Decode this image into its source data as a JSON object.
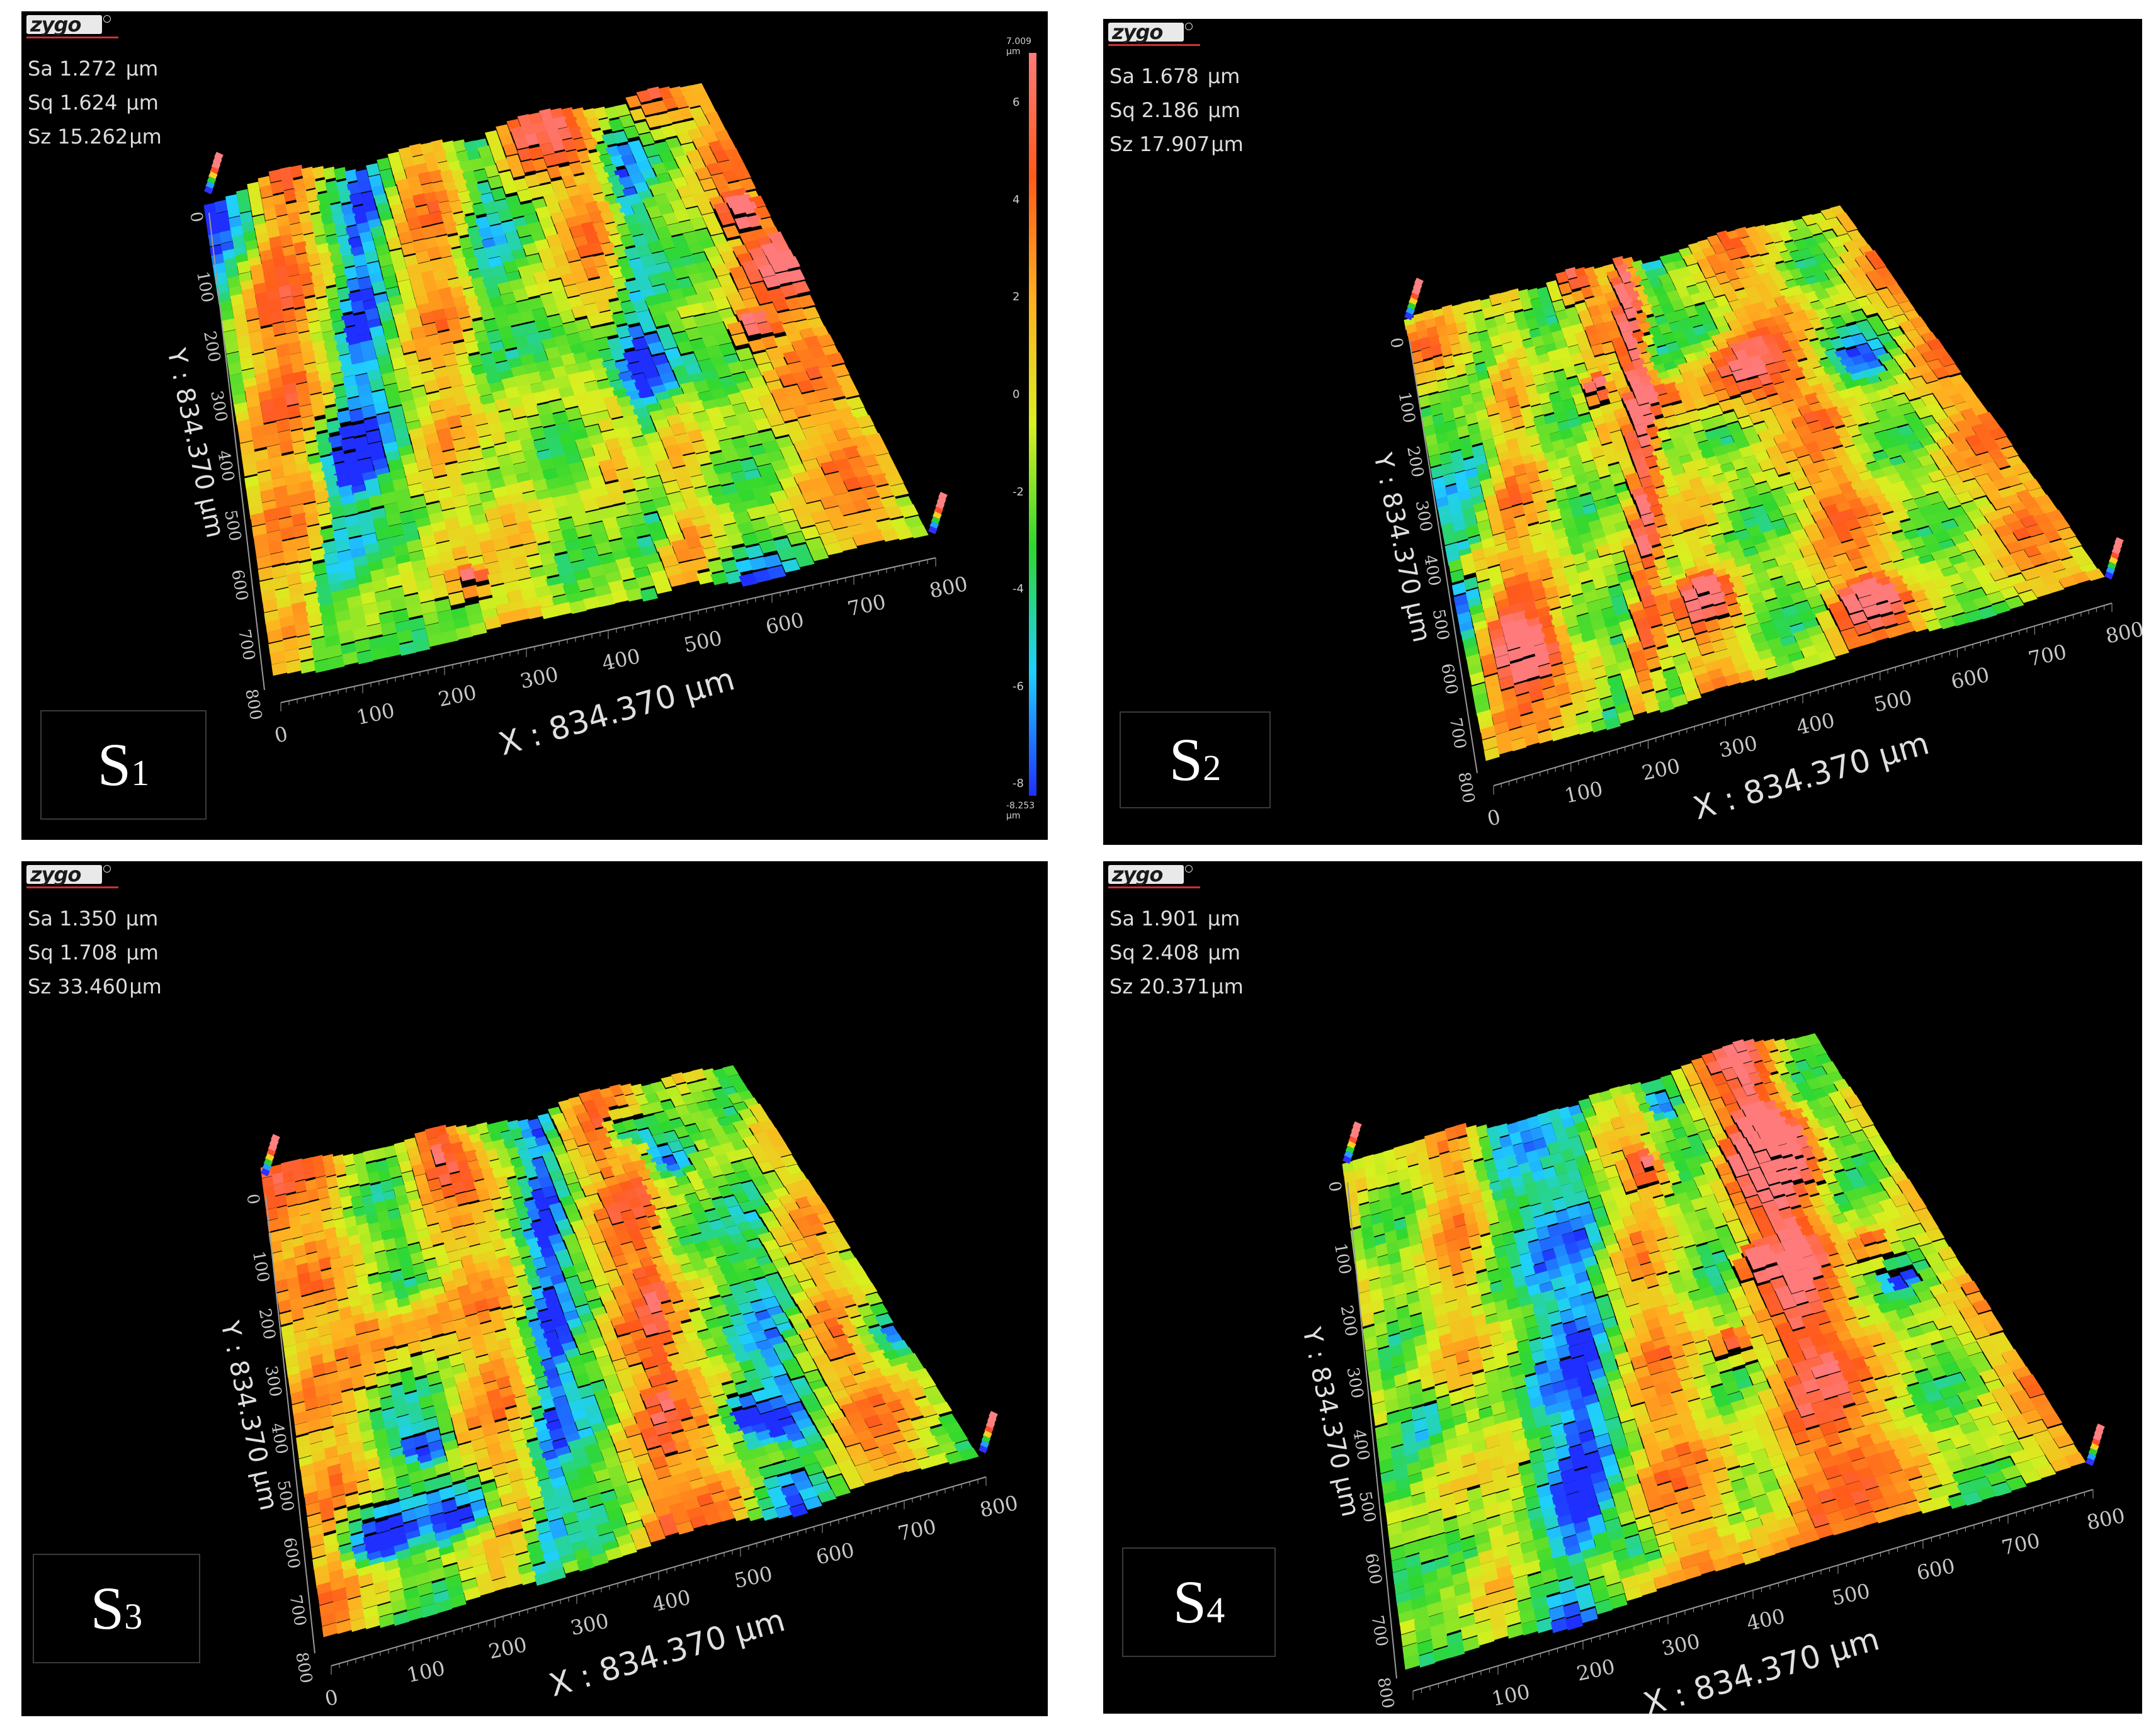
{
  "panels": [
    {
      "id": "S1",
      "logo": "zygo",
      "stats": [
        {
          "name": "Sa",
          "value": "1.272",
          "unit": "µm"
        },
        {
          "name": "Sq",
          "value": "1.624",
          "unit": "µm"
        },
        {
          "name": "Sz",
          "value": "15.262",
          "unit": "µm"
        }
      ],
      "label": {
        "letter": "S",
        "sub": "1"
      },
      "x_axis_title": "X : 834.370 µm",
      "y_axis_title": "Y : 834.370 µm",
      "x_ticks": [
        "0",
        "100",
        "200",
        "300",
        "400",
        "500",
        "600",
        "700",
        "800"
      ],
      "y_ticks": [
        "0",
        "100",
        "200",
        "300",
        "400",
        "500",
        "600",
        "700",
        "800"
      ],
      "colorbar": {
        "max_label": "7.009 µm",
        "min_label": "-8.253 µm",
        "ticks": [
          "6",
          "4",
          "2",
          "0",
          "-2",
          "-4",
          "-6",
          "-8"
        ]
      }
    },
    {
      "id": "S2",
      "logo": "zygo",
      "stats": [
        {
          "name": "Sa",
          "value": "1.678",
          "unit": "µm"
        },
        {
          "name": "Sq",
          "value": "2.186",
          "unit": "µm"
        },
        {
          "name": "Sz",
          "value": "17.907",
          "unit": "µm"
        }
      ],
      "label": {
        "letter": "S",
        "sub": "2"
      },
      "x_axis_title": "X : 834.370 µm",
      "y_axis_title": "Y : 834.370 µm",
      "x_ticks": [
        "0",
        "100",
        "200",
        "300",
        "400",
        "500",
        "600",
        "700",
        "800"
      ],
      "y_ticks": [
        "0",
        "100",
        "200",
        "300",
        "400",
        "500",
        "600",
        "700",
        "800"
      ]
    },
    {
      "id": "S3",
      "logo": "zygo",
      "stats": [
        {
          "name": "Sa",
          "value": "1.350",
          "unit": "µm"
        },
        {
          "name": "Sq",
          "value": "1.708",
          "unit": "µm"
        },
        {
          "name": "Sz",
          "value": "33.460",
          "unit": "µm"
        }
      ],
      "label": {
        "letter": "S",
        "sub": "3"
      },
      "x_axis_title": "X : 834.370 µm",
      "y_axis_title": "Y : 834.370 µm",
      "x_ticks": [
        "0",
        "100",
        "200",
        "300",
        "400",
        "500",
        "600",
        "700",
        "800"
      ],
      "y_ticks": [
        "0",
        "100",
        "200",
        "300",
        "400",
        "500",
        "600",
        "700",
        "800"
      ]
    },
    {
      "id": "S4",
      "logo": "zygo",
      "stats": [
        {
          "name": "Sa",
          "value": "1.901",
          "unit": "µm"
        },
        {
          "name": "Sq",
          "value": "2.408",
          "unit": "µm"
        },
        {
          "name": "Sz",
          "value": "20.371",
          "unit": "µm"
        }
      ],
      "label": {
        "letter": "S",
        "sub": "4"
      },
      "x_axis_title": "X : 834.370 µm",
      "y_axis_title": "Y : 834.370 µm",
      "x_ticks": [
        "0",
        "100",
        "200",
        "300",
        "400",
        "500",
        "600",
        "700",
        "800"
      ],
      "y_ticks": [
        "0",
        "100",
        "200",
        "300",
        "400",
        "500",
        "600",
        "700",
        "800"
      ]
    }
  ],
  "colors": {
    "panel_background": "#000000",
    "height_scale": [
      "#1f2fff",
      "#1fd0ff",
      "#2fd82f",
      "#d8f020",
      "#ffb020",
      "#ff5a1a",
      "#ff7a7a"
    ],
    "stats_text": "#dcdcdc",
    "axis_text": "#c8c8c8"
  }
}
